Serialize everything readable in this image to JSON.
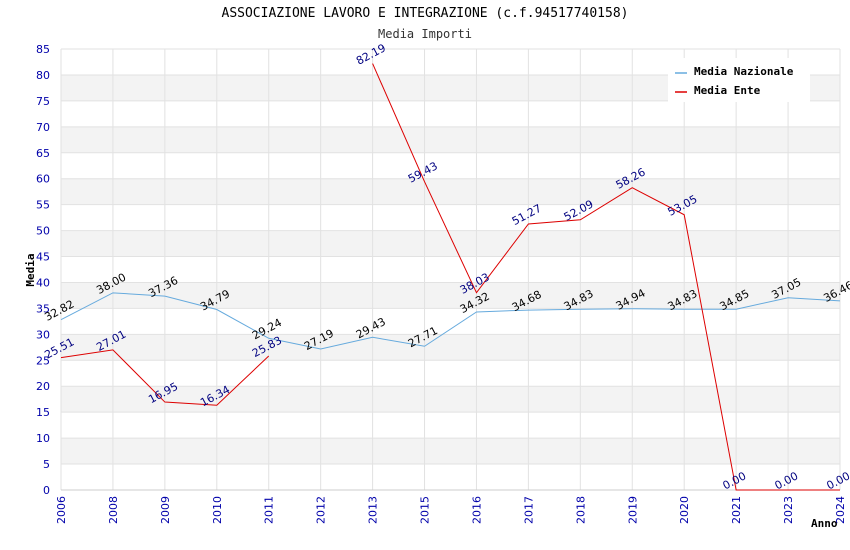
{
  "chart_data": {
    "type": "line",
    "title": "ASSOCIAZIONE LAVORO E INTEGRAZIONE (c.f.94517740158)",
    "subtitle": "Media Importi",
    "xlabel": "Anno",
    "ylabel": "Media",
    "ylim": [
      0,
      85
    ],
    "yticks": [
      0,
      5,
      10,
      15,
      20,
      25,
      30,
      35,
      40,
      45,
      50,
      55,
      60,
      65,
      70,
      75,
      80,
      85
    ],
    "categories": [
      "2006",
      "2008",
      "2009",
      "2010",
      "2011",
      "2012",
      "2013",
      "2015",
      "2016",
      "2017",
      "2018",
      "2019",
      "2020",
      "2021",
      "2023",
      "2024"
    ],
    "grid": true,
    "legend_position": "top-right",
    "series": [
      {
        "name": "Media Nazionale",
        "color": "#66aadd",
        "values": [
          32.82,
          38.0,
          37.36,
          34.79,
          29.24,
          27.19,
          29.43,
          27.71,
          34.32,
          34.68,
          34.83,
          34.94,
          34.83,
          34.85,
          37.05,
          36.46
        ],
        "labels": [
          "32.82",
          "38.00",
          "37.36",
          "34.79",
          "29.24",
          "27.19",
          "29.43",
          "27.71",
          "34.32",
          "34.68",
          "34.83",
          "34.94",
          "34.83",
          "34.85",
          "37.05",
          "36.46"
        ]
      },
      {
        "name": "Media Ente",
        "color": "#dd0000",
        "values": [
          25.51,
          27.01,
          16.95,
          16.34,
          25.83,
          null,
          82.19,
          59.43,
          38.03,
          51.27,
          52.09,
          58.26,
          53.05,
          0.0,
          0.0,
          0.0
        ],
        "labels": [
          "25.51",
          "27.01",
          "16.95",
          "16.34",
          "25.83",
          null,
          "82.19",
          "59.43",
          "38.03",
          "51.27",
          "52.09",
          "58.26",
          "53.05",
          "0.00",
          "0.00",
          "0.00"
        ]
      }
    ]
  }
}
